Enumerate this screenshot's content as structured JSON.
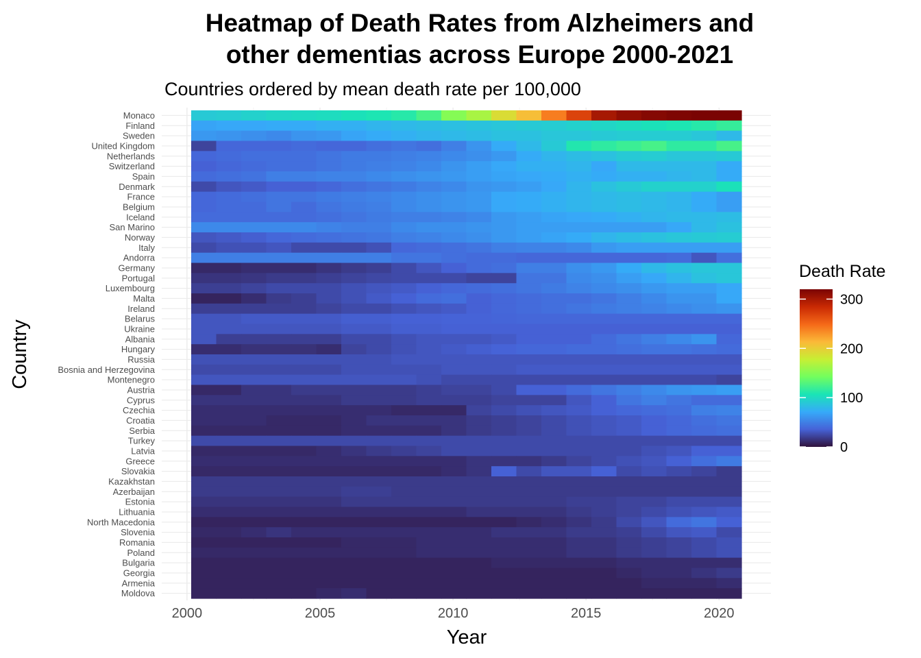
{
  "chart_data": {
    "type": "heatmap",
    "title_line1": "Heatmap of Death Rates from Alzheimers and",
    "title_line2": "other dementias across Europe 2000-2021",
    "subtitle": "Countries ordered by mean death rate per 100,000",
    "xlabel": "Year",
    "ylabel": "Country",
    "legend_title": "Death Rate",
    "legend_ticks": [
      0,
      100,
      200,
      300
    ],
    "color_range": [
      0,
      320
    ],
    "color_scale": [
      "#30123b",
      "#4662d7",
      "#36aaf9",
      "#1ae4b6",
      "#72fe5e",
      "#c7ef34",
      "#fbb938",
      "#f56918",
      "#c92903",
      "#7a0403"
    ],
    "x": [
      2000,
      2001,
      2002,
      2003,
      2004,
      2005,
      2006,
      2007,
      2008,
      2009,
      2010,
      2011,
      2012,
      2013,
      2014,
      2015,
      2016,
      2017,
      2018,
      2019,
      2020,
      2021
    ],
    "x_ticks": [
      2000,
      2005,
      2010,
      2015,
      2020
    ],
    "xlim": [
      1999.05,
      2021.95
    ],
    "countries": [
      "Monaco",
      "Finland",
      "Sweden",
      "United Kingdom",
      "Netherlands",
      "Switzerland",
      "Spain",
      "Denmark",
      "France",
      "Belgium",
      "Iceland",
      "San Marino",
      "Norway",
      "Italy",
      "Andorra",
      "Germany",
      "Portugal",
      "Luxembourg",
      "Malta",
      "Ireland",
      "Belarus",
      "Ukraine",
      "Albania",
      "Hungary",
      "Russia",
      "Bosnia and Herzegovina",
      "Montenegro",
      "Austria",
      "Cyprus",
      "Czechia",
      "Croatia",
      "Serbia",
      "Turkey",
      "Latvia",
      "Greece",
      "Slovakia",
      "Kazakhstan",
      "Azerbaijan",
      "Estonia",
      "Lithuania",
      "North Macedonia",
      "Slovenia",
      "Romania",
      "Poland",
      "Bulgaria",
      "Georgia",
      "Armenia",
      "Moldova"
    ],
    "values": [
      [
        90,
        92,
        95,
        98,
        100,
        102,
        105,
        108,
        112,
        125,
        150,
        165,
        190,
        210,
        240,
        270,
        300,
        310,
        315,
        318,
        320,
        322
      ],
      [
        68,
        70,
        70,
        72,
        72,
        75,
        75,
        78,
        80,
        82,
        84,
        86,
        88,
        90,
        92,
        95,
        98,
        102,
        105,
        108,
        112,
        118
      ],
      [
        62,
        60,
        58,
        55,
        60,
        62,
        68,
        72,
        75,
        78,
        80,
        82,
        85,
        85,
        88,
        88,
        90,
        92,
        92,
        92,
        88,
        80
      ],
      [
        22,
        38,
        38,
        38,
        40,
        38,
        38,
        42,
        45,
        42,
        50,
        60,
        72,
        80,
        90,
        110,
        115,
        120,
        125,
        115,
        115,
        125
      ],
      [
        38,
        40,
        42,
        42,
        42,
        45,
        48,
        48,
        50,
        52,
        55,
        58,
        62,
        72,
        78,
        82,
        85,
        90,
        92,
        88,
        88,
        90
      ],
      [
        35,
        38,
        40,
        42,
        42,
        45,
        48,
        50,
        52,
        55,
        60,
        65,
        70,
        75,
        75,
        78,
        70,
        80,
        80,
        80,
        80,
        72
      ],
      [
        40,
        42,
        44,
        50,
        50,
        52,
        52,
        55,
        58,
        60,
        62,
        65,
        68,
        70,
        72,
        75,
        72,
        75,
        75,
        78,
        80,
        72
      ],
      [
        25,
        30,
        32,
        35,
        35,
        38,
        42,
        45,
        48,
        52,
        55,
        60,
        62,
        65,
        70,
        78,
        85,
        90,
        95,
        95,
        95,
        105
      ],
      [
        38,
        40,
        42,
        45,
        45,
        48,
        50,
        52,
        55,
        58,
        60,
        62,
        70,
        72,
        75,
        78,
        80,
        82,
        80,
        78,
        72,
        65
      ],
      [
        38,
        40,
        40,
        45,
        40,
        45,
        48,
        50,
        55,
        58,
        60,
        62,
        70,
        72,
        75,
        78,
        80,
        82,
        80,
        78,
        72,
        65
      ],
      [
        40,
        40,
        40,
        40,
        40,
        42,
        45,
        48,
        50,
        50,
        52,
        55,
        62,
        65,
        68,
        70,
        72,
        75,
        78,
        80,
        80,
        82
      ],
      [
        55,
        55,
        55,
        55,
        55,
        52,
        50,
        50,
        55,
        58,
        58,
        60,
        62,
        65,
        65,
        65,
        65,
        65,
        65,
        70,
        80,
        85
      ],
      [
        30,
        32,
        34,
        38,
        40,
        42,
        44,
        46,
        50,
        52,
        55,
        58,
        62,
        65,
        68,
        72,
        78,
        82,
        85,
        88,
        90,
        92
      ],
      [
        25,
        28,
        28,
        30,
        25,
        25,
        25,
        28,
        38,
        40,
        42,
        45,
        50,
        52,
        52,
        55,
        62,
        65,
        65,
        65,
        65,
        65
      ],
      [
        50,
        50,
        50,
        50,
        50,
        50,
        50,
        50,
        45,
        45,
        42,
        40,
        40,
        38,
        38,
        38,
        38,
        38,
        38,
        40,
        30,
        42
      ],
      [
        10,
        10,
        12,
        12,
        12,
        15,
        18,
        20,
        25,
        30,
        35,
        40,
        42,
        50,
        50,
        58,
        62,
        72,
        80,
        85,
        88,
        88
      ],
      [
        15,
        15,
        16,
        18,
        18,
        20,
        22,
        24,
        25,
        25,
        25,
        22,
        22,
        45,
        45,
        55,
        58,
        65,
        70,
        78,
        85,
        88
      ],
      [
        20,
        20,
        22,
        25,
        25,
        25,
        28,
        30,
        32,
        35,
        38,
        40,
        42,
        45,
        48,
        52,
        55,
        58,
        62,
        65,
        65,
        70
      ],
      [
        8,
        8,
        12,
        18,
        20,
        25,
        28,
        32,
        35,
        40,
        42,
        35,
        38,
        40,
        42,
        42,
        45,
        50,
        55,
        60,
        60,
        70
      ],
      [
        20,
        20,
        20,
        20,
        20,
        22,
        25,
        25,
        28,
        30,
        32,
        35,
        38,
        40,
        42,
        45,
        48,
        50,
        52,
        55,
        58,
        60
      ],
      [
        30,
        30,
        32,
        32,
        32,
        32,
        34,
        34,
        35,
        35,
        36,
        36,
        37,
        38,
        38,
        38,
        38,
        38,
        38,
        38,
        38,
        38
      ],
      [
        30,
        30,
        30,
        30,
        30,
        30,
        32,
        32,
        34,
        34,
        35,
        35,
        35,
        35,
        35,
        35,
        35,
        35,
        35,
        35,
        35,
        35
      ],
      [
        30,
        20,
        20,
        20,
        20,
        20,
        25,
        25,
        28,
        30,
        30,
        30,
        32,
        35,
        35,
        35,
        40,
        45,
        50,
        55,
        60,
        38
      ],
      [
        12,
        12,
        14,
        14,
        14,
        12,
        22,
        25,
        28,
        30,
        32,
        34,
        36,
        38,
        38,
        40,
        40,
        42,
        44,
        44,
        42,
        40
      ],
      [
        28,
        28,
        28,
        28,
        28,
        28,
        28,
        28,
        30,
        30,
        30,
        30,
        30,
        30,
        30,
        30,
        30,
        30,
        30,
        30,
        30,
        30
      ],
      [
        25,
        25,
        25,
        25,
        25,
        25,
        28,
        28,
        28,
        28,
        30,
        30,
        30,
        32,
        32,
        32,
        32,
        32,
        32,
        32,
        32,
        32
      ],
      [
        30,
        30,
        30,
        30,
        30,
        30,
        30,
        30,
        30,
        28,
        25,
        25,
        25,
        25,
        25,
        25,
        25,
        25,
        25,
        25,
        25,
        22
      ],
      [
        10,
        10,
        15,
        15,
        18,
        18,
        18,
        18,
        18,
        20,
        22,
        22,
        25,
        35,
        35,
        40,
        45,
        50,
        55,
        60,
        62,
        65
      ],
      [
        15,
        15,
        15,
        15,
        15,
        15,
        18,
        18,
        18,
        20,
        20,
        20,
        22,
        22,
        22,
        30,
        35,
        45,
        50,
        45,
        40,
        40
      ],
      [
        12,
        12,
        12,
        12,
        12,
        12,
        12,
        12,
        10,
        10,
        10,
        22,
        25,
        28,
        30,
        32,
        35,
        38,
        40,
        42,
        50,
        52
      ],
      [
        12,
        12,
        12,
        10,
        10,
        10,
        12,
        15,
        15,
        15,
        15,
        18,
        20,
        22,
        25,
        28,
        30,
        32,
        35,
        38,
        42,
        45
      ],
      [
        10,
        10,
        10,
        10,
        10,
        10,
        12,
        12,
        12,
        12,
        15,
        18,
        20,
        22,
        25,
        28,
        30,
        32,
        35,
        38,
        40,
        42
      ],
      [
        25,
        25,
        25,
        25,
        25,
        25,
        25,
        25,
        25,
        25,
        25,
        25,
        25,
        25,
        25,
        25,
        25,
        25,
        25,
        25,
        25,
        25
      ],
      [
        10,
        10,
        10,
        10,
        10,
        12,
        15,
        18,
        20,
        22,
        25,
        25,
        25,
        25,
        25,
        25,
        25,
        25,
        28,
        30,
        35,
        35
      ],
      [
        12,
        12,
        12,
        12,
        12,
        12,
        12,
        12,
        12,
        12,
        12,
        15,
        15,
        15,
        18,
        22,
        25,
        28,
        30,
        35,
        42,
        48
      ],
      [
        10,
        10,
        10,
        10,
        10,
        10,
        10,
        10,
        10,
        10,
        12,
        15,
        35,
        25,
        30,
        30,
        35,
        25,
        28,
        25,
        22,
        18
      ],
      [
        18,
        18,
        18,
        18,
        18,
        18,
        18,
        18,
        18,
        18,
        18,
        18,
        18,
        18,
        18,
        18,
        18,
        18,
        18,
        18,
        18,
        18
      ],
      [
        18,
        18,
        18,
        18,
        18,
        18,
        20,
        20,
        18,
        18,
        18,
        18,
        18,
        18,
        18,
        18,
        18,
        18,
        18,
        18,
        18,
        18
      ],
      [
        15,
        15,
        15,
        15,
        15,
        15,
        18,
        18,
        18,
        18,
        18,
        18,
        18,
        18,
        18,
        20,
        20,
        22,
        22,
        25,
        25,
        25
      ],
      [
        12,
        12,
        12,
        12,
        12,
        12,
        12,
        12,
        12,
        12,
        12,
        15,
        15,
        15,
        15,
        18,
        20,
        22,
        25,
        28,
        30,
        32
      ],
      [
        8,
        8,
        8,
        8,
        8,
        8,
        8,
        8,
        8,
        8,
        8,
        8,
        8,
        10,
        12,
        15,
        18,
        25,
        30,
        40,
        45,
        35
      ],
      [
        10,
        10,
        12,
        15,
        12,
        12,
        12,
        12,
        12,
        12,
        12,
        12,
        15,
        15,
        15,
        18,
        18,
        20,
        25,
        30,
        32,
        25
      ],
      [
        8,
        8,
        8,
        8,
        8,
        8,
        10,
        10,
        10,
        12,
        12,
        12,
        12,
        12,
        12,
        15,
        15,
        18,
        20,
        22,
        25,
        28
      ],
      [
        10,
        10,
        10,
        10,
        10,
        10,
        10,
        10,
        10,
        12,
        12,
        12,
        12,
        12,
        12,
        15,
        15,
        18,
        20,
        22,
        25,
        28
      ],
      [
        8,
        8,
        8,
        8,
        8,
        8,
        8,
        8,
        8,
        8,
        8,
        8,
        10,
        10,
        10,
        10,
        10,
        12,
        12,
        12,
        12,
        12
      ],
      [
        8,
        8,
        8,
        8,
        8,
        8,
        8,
        8,
        8,
        8,
        8,
        8,
        8,
        8,
        8,
        8,
        8,
        10,
        12,
        12,
        15,
        18
      ],
      [
        8,
        8,
        8,
        8,
        8,
        8,
        8,
        8,
        8,
        8,
        8,
        8,
        8,
        8,
        8,
        8,
        8,
        8,
        10,
        10,
        10,
        12
      ],
      [
        8,
        8,
        8,
        8,
        8,
        10,
        12,
        8,
        8,
        8,
        8,
        8,
        8,
        8,
        8,
        8,
        8,
        8,
        8,
        8,
        8,
        8
      ]
    ]
  }
}
